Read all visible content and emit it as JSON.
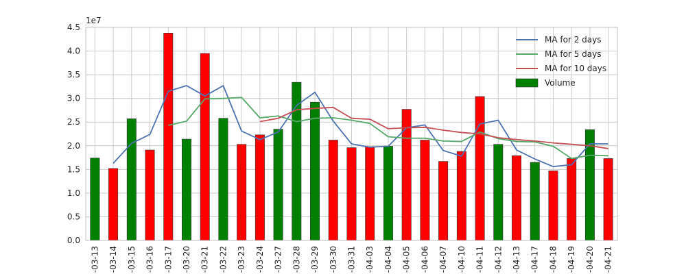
{
  "chart_data": {
    "type": "bar",
    "title": "",
    "xlabel": "",
    "ylabel": "",
    "y_multiplier_label": "1e7",
    "ylim": [
      0,
      4.5
    ],
    "y_ticks": [
      "0.0",
      "0.5",
      "1.0",
      "1.5",
      "2.0",
      "2.5",
      "3.0",
      "3.5",
      "4.0",
      "4.5"
    ],
    "grid": true,
    "legend_position": "top-right",
    "categories": [
      "-03-13",
      "-03-14",
      "-03-15",
      "-03-16",
      "-03-17",
      "-03-20",
      "-03-21",
      "-03-22",
      "-03-23",
      "-03-24",
      "-03-27",
      "-03-28",
      "-03-29",
      "-03-30",
      "-03-31",
      "-04-03",
      "-04-04",
      "-04-05",
      "-04-06",
      "-04-07",
      "-04-10",
      "-04-11",
      "-04-12",
      "-04-13",
      "-04-17",
      "-04-18",
      "-04-19",
      "-04-20",
      "-04-21"
    ],
    "volume": {
      "name": "Volume",
      "values": [
        1.74,
        1.52,
        2.57,
        1.91,
        4.38,
        2.14,
        3.95,
        2.58,
        2.03,
        2.23,
        2.35,
        3.34,
        2.92,
        2.12,
        1.96,
        1.98,
        1.99,
        2.77,
        2.12,
        1.67,
        1.88,
        3.04,
        2.03,
        1.79,
        1.65,
        1.47,
        1.73,
        2.34,
        1.73
      ],
      "bar_colors": [
        "green",
        "red",
        "green",
        "red",
        "red",
        "green",
        "red",
        "green",
        "red",
        "red",
        "green",
        "green",
        "green",
        "red",
        "red",
        "red",
        "green",
        "red",
        "red",
        "red",
        "red",
        "red",
        "green",
        "red",
        "green",
        "red",
        "red",
        "green",
        "red"
      ]
    },
    "series": [
      {
        "name": "MA for 2 days",
        "color": "#4C72B0",
        "values": [
          null,
          1.63,
          2.05,
          2.24,
          3.15,
          3.27,
          3.05,
          3.27,
          2.31,
          2.13,
          2.29,
          2.85,
          3.13,
          2.52,
          2.04,
          1.97,
          1.99,
          2.38,
          2.44,
          1.9,
          1.78,
          2.46,
          2.54,
          1.91,
          1.72,
          1.56,
          1.6,
          2.04,
          2.04
        ]
      },
      {
        "name": "MA for 5 days",
        "color": "#55A868",
        "values": [
          null,
          null,
          null,
          null,
          2.43,
          2.52,
          2.99,
          3.0,
          3.02,
          2.59,
          2.63,
          2.51,
          2.58,
          2.59,
          2.54,
          2.47,
          2.19,
          2.16,
          2.16,
          2.1,
          2.09,
          2.29,
          2.15,
          2.09,
          2.08,
          1.99,
          1.73,
          1.8,
          1.79
        ]
      },
      {
        "name": "MA for 10 days",
        "color": "#C44E52",
        "values": [
          null,
          null,
          null,
          null,
          null,
          null,
          null,
          null,
          null,
          2.51,
          2.58,
          2.76,
          2.79,
          2.81,
          2.58,
          2.56,
          2.36,
          2.38,
          2.39,
          2.33,
          2.28,
          2.25,
          2.17,
          2.13,
          2.1,
          2.06,
          2.03,
          2.0,
          1.94
        ]
      }
    ]
  }
}
